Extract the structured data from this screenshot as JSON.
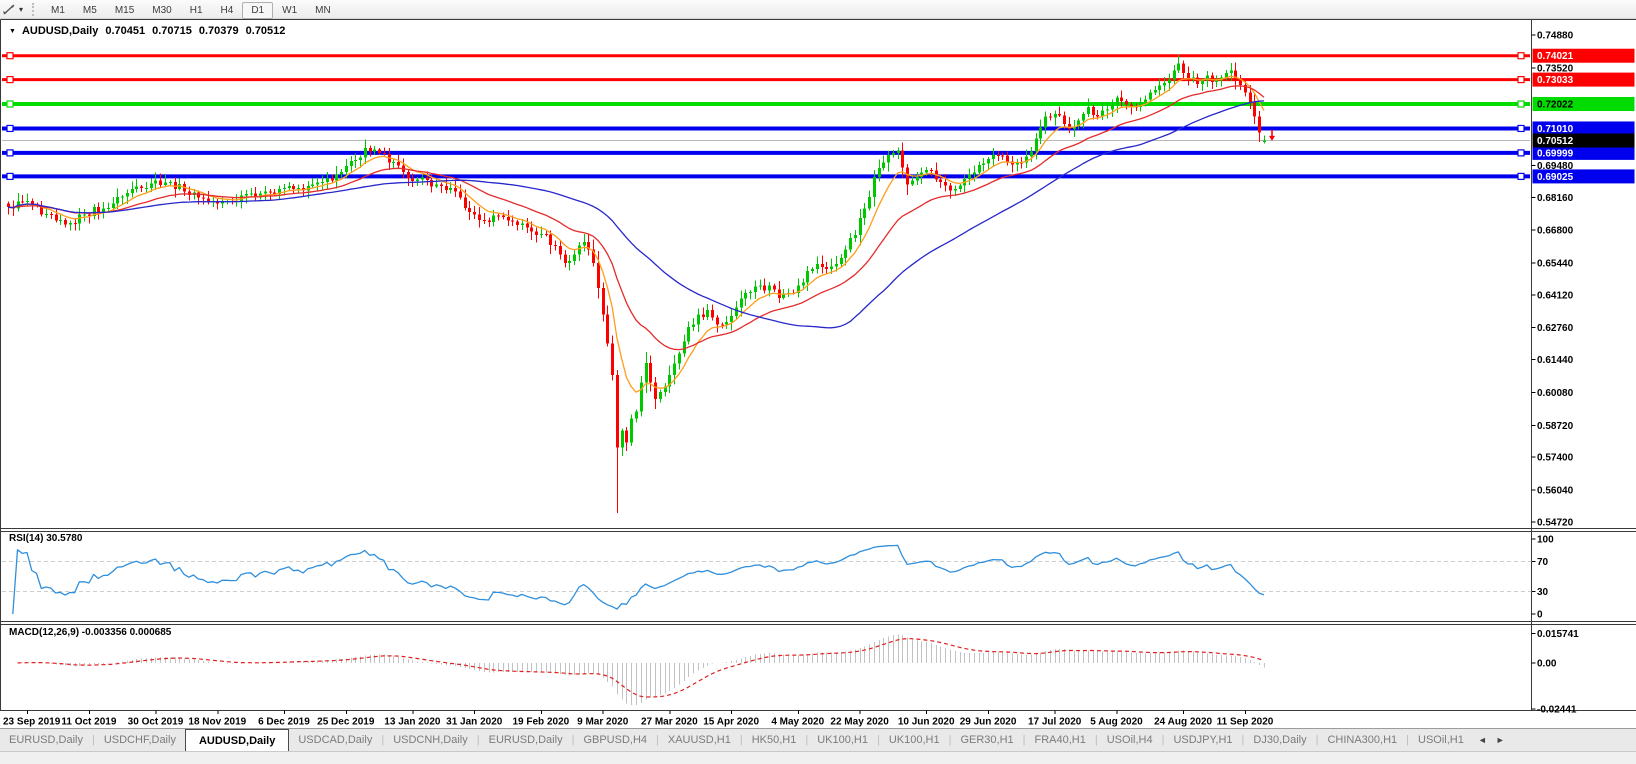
{
  "toolbar": {
    "timeframes": [
      "M1",
      "M5",
      "M15",
      "M30",
      "H1",
      "H4",
      "D1",
      "W1",
      "MN"
    ],
    "active_timeframe": "D1"
  },
  "icons": {
    "dropdown": "▼",
    "caret": "▾",
    "scroll_left": "◄",
    "scroll_right": "►",
    "tab_separator": "|"
  },
  "chart_header": {
    "symbol": "AUDUSD,Daily",
    "open": "0.70451",
    "high": "0.70715",
    "low": "0.70379",
    "close": "0.70512"
  },
  "rsi_panel": {
    "label": "RSI(14) 30.5780"
  },
  "macd_panel": {
    "label": "MACD(12,26,9) -0.003356 0.000685"
  },
  "tab_bar": {
    "tabs": [
      {
        "label": "EURUSD,Daily",
        "active": false
      },
      {
        "label": "USDCHF,Daily",
        "active": false
      },
      {
        "label": "AUDUSD,Daily",
        "active": true
      },
      {
        "label": "USDCAD,Daily",
        "active": false
      },
      {
        "label": "USDCNH,Daily",
        "active": false
      },
      {
        "label": "EURUSD,Daily",
        "active": false
      },
      {
        "label": "GBPUSD,H4",
        "active": false
      },
      {
        "label": "XAUUSD,H1",
        "active": false
      },
      {
        "label": "HK50,H1",
        "active": false
      },
      {
        "label": "UK100,H1",
        "active": false
      },
      {
        "label": "UK100,H1",
        "active": false
      },
      {
        "label": "GER30,H1",
        "active": false
      },
      {
        "label": "FRA40,H1",
        "active": false
      },
      {
        "label": "USOil,H4",
        "active": false
      },
      {
        "label": "USDJPY,H1",
        "active": false
      },
      {
        "label": "DJ30,Daily",
        "active": false
      },
      {
        "label": "CHINA300,H1",
        "active": false
      },
      {
        "label": "USOil,H1",
        "active": false
      }
    ]
  },
  "chart_data": {
    "type": "candlestick",
    "symbol": "AUDUSD",
    "timeframe": "Daily",
    "n_candles": 265,
    "ylim": [
      0.5447,
      0.755
    ],
    "price_axis_ticks": [
      "0.74880",
      "0.73520",
      "0.69480",
      "0.68160",
      "0.66800",
      "0.65440",
      "0.64120",
      "0.62760",
      "0.61440",
      "0.60080",
      "0.58720",
      "0.57400",
      "0.56040",
      "0.54720"
    ],
    "x_axis": [
      {
        "label": "23 Sep 2019",
        "candle_index": 4
      },
      {
        "label": "11 Oct 2019",
        "candle_index": 17
      },
      {
        "label": "30 Oct 2019",
        "candle_index": 31
      },
      {
        "label": "18 Nov 2019",
        "candle_index": 44
      },
      {
        "label": "6 Dec 2019",
        "candle_index": 58
      },
      {
        "label": "25 Dec 2019",
        "candle_index": 71
      },
      {
        "label": "13 Jan 2020",
        "candle_index": 85
      },
      {
        "label": "31 Jan 2020",
        "candle_index": 98
      },
      {
        "label": "19 Feb 2020",
        "candle_index": 112
      },
      {
        "label": "9 Mar 2020",
        "candle_index": 125
      },
      {
        "label": "27 Mar 2020",
        "candle_index": 139
      },
      {
        "label": "15 Apr 2020",
        "candle_index": 152
      },
      {
        "label": "4 May 2020",
        "candle_index": 166
      },
      {
        "label": "22 May 2020",
        "candle_index": 179
      },
      {
        "label": "10 Jun 2020",
        "candle_index": 193
      },
      {
        "label": "29 Jun 2020",
        "candle_index": 206
      },
      {
        "label": "17 Jul 2020",
        "candle_index": 220
      },
      {
        "label": "5 Aug 2020",
        "candle_index": 233
      },
      {
        "label": "24 Aug 2020",
        "candle_index": 247
      },
      {
        "label": "11 Sep 2020",
        "candle_index": 260
      }
    ],
    "close_anchors": [
      [
        0,
        0.6775
      ],
      [
        4,
        0.68
      ],
      [
        7,
        0.6745
      ],
      [
        10,
        0.672
      ],
      [
        13,
        0.671
      ],
      [
        16,
        0.6745
      ],
      [
        20,
        0.677
      ],
      [
        24,
        0.682
      ],
      [
        27,
        0.686
      ],
      [
        31,
        0.6885
      ],
      [
        34,
        0.688
      ],
      [
        37,
        0.684
      ],
      [
        40,
        0.6815
      ],
      [
        44,
        0.679
      ],
      [
        47,
        0.68
      ],
      [
        50,
        0.683
      ],
      [
        54,
        0.684
      ],
      [
        58,
        0.6855
      ],
      [
        62,
        0.6845
      ],
      [
        66,
        0.688
      ],
      [
        70,
        0.692
      ],
      [
        73,
        0.697
      ],
      [
        75,
        0.702
      ],
      [
        78,
        0.7
      ],
      [
        80,
        0.696
      ],
      [
        83,
        0.692
      ],
      [
        86,
        0.689
      ],
      [
        90,
        0.687
      ],
      [
        94,
        0.684
      ],
      [
        97,
        0.6755
      ],
      [
        100,
        0.672
      ],
      [
        103,
        0.674
      ],
      [
        106,
        0.6715
      ],
      [
        109,
        0.669
      ],
      [
        112,
        0.6665
      ],
      [
        115,
        0.6615
      ],
      [
        117,
        0.6545
      ],
      [
        119,
        0.658
      ],
      [
        121,
        0.663
      ],
      [
        123,
        0.6545
      ],
      [
        124,
        0.644
      ],
      [
        125,
        0.633
      ],
      [
        126,
        0.621
      ],
      [
        127,
        0.608
      ],
      [
        128,
        0.578
      ],
      [
        129,
        0.585
      ],
      [
        130,
        0.58
      ],
      [
        131,
        0.59
      ],
      [
        132,
        0.593
      ],
      [
        133,
        0.605
      ],
      [
        134,
        0.613
      ],
      [
        135,
        0.605
      ],
      [
        136,
        0.598
      ],
      [
        137,
        0.601
      ],
      [
        139,
        0.608
      ],
      [
        141,
        0.617
      ],
      [
        143,
        0.628
      ],
      [
        145,
        0.633
      ],
      [
        147,
        0.635
      ],
      [
        149,
        0.629
      ],
      [
        151,
        0.63
      ],
      [
        153,
        0.636
      ],
      [
        155,
        0.642
      ],
      [
        158,
        0.645
      ],
      [
        160,
        0.645
      ],
      [
        162,
        0.64
      ],
      [
        164,
        0.642
      ],
      [
        166,
        0.645
      ],
      [
        168,
        0.651
      ],
      [
        170,
        0.654
      ],
      [
        172,
        0.652
      ],
      [
        174,
        0.654
      ],
      [
        176,
        0.66
      ],
      [
        178,
        0.666
      ],
      [
        180,
        0.677
      ],
      [
        182,
        0.69
      ],
      [
        184,
        0.696
      ],
      [
        186,
        0.7
      ],
      [
        187,
        0.701
      ],
      [
        188,
        0.694
      ],
      [
        189,
        0.687
      ],
      [
        191,
        0.69
      ],
      [
        193,
        0.693
      ],
      [
        195,
        0.689
      ],
      [
        197,
        0.6865
      ],
      [
        199,
        0.685
      ],
      [
        200,
        0.6865
      ],
      [
        202,
        0.691
      ],
      [
        204,
        0.695
      ],
      [
        206,
        0.6975
      ],
      [
        208,
        0.699
      ],
      [
        210,
        0.6965
      ],
      [
        212,
        0.696
      ],
      [
        214,
        0.6985
      ],
      [
        216,
        0.706
      ],
      [
        218,
        0.715
      ],
      [
        220,
        0.716
      ],
      [
        222,
        0.712
      ],
      [
        224,
        0.711
      ],
      [
        226,
        0.716
      ],
      [
        227,
        0.719
      ],
      [
        229,
        0.715
      ],
      [
        231,
        0.718
      ],
      [
        233,
        0.723
      ],
      [
        235,
        0.72
      ],
      [
        237,
        0.719
      ],
      [
        239,
        0.722
      ],
      [
        241,
        0.726
      ],
      [
        243,
        0.729
      ],
      [
        245,
        0.734
      ],
      [
        246,
        0.737
      ],
      [
        247,
        0.733
      ],
      [
        248,
        0.731
      ],
      [
        250,
        0.7285
      ],
      [
        252,
        0.732
      ],
      [
        254,
        0.73
      ],
      [
        256,
        0.733
      ],
      [
        257,
        0.734
      ],
      [
        258,
        0.73
      ],
      [
        259,
        0.728
      ],
      [
        260,
        0.725
      ],
      [
        261,
        0.721
      ],
      [
        262,
        0.715
      ],
      [
        263,
        0.7085
      ],
      [
        264,
        0.70512
      ]
    ],
    "special": {
      "crash_low_index": 128,
      "crash_low": 0.551,
      "spike_high_index": 246,
      "spike_high": 0.7406,
      "last_candle": {
        "open": 0.70451,
        "high": 0.70715,
        "low": 0.70379,
        "close": 0.70512
      }
    },
    "moving_averages": [
      {
        "name": "fast",
        "type": "ema",
        "period": 8,
        "color": "#ff9d1c"
      },
      {
        "name": "mid",
        "type": "ema",
        "period": 24,
        "color": "#e52b2b"
      },
      {
        "name": "slow",
        "type": "sma",
        "period": 50,
        "color": "#2828cc"
      }
    ],
    "hlines": [
      {
        "price": 0.74021,
        "label": "0.74021",
        "color": "#ff0000",
        "label_text_color": "#ffffff",
        "width": 3
      },
      {
        "price": 0.73033,
        "label": "0.73033",
        "color": "#ff0000",
        "label_text_color": "#ffffff",
        "width": 3
      },
      {
        "price": 0.72022,
        "label": "0.72022",
        "color": "#00dc00",
        "label_text_color": "#000000",
        "width": 4
      },
      {
        "price": 0.7101,
        "label": "0.71010",
        "color": "#0000ee",
        "label_text_color": "#ffffff",
        "width": 4
      },
      {
        "price": 0.69999,
        "label": "0.69999",
        "color": "#0000ee",
        "label_text_color": "#ffffff",
        "width": 4
      },
      {
        "price": 0.69025,
        "label": "0.69025",
        "color": "#0000ee",
        "label_text_color": "#ffffff",
        "width": 4
      }
    ],
    "current_price": {
      "price": 0.70512,
      "label": "0.70512",
      "line_color": "#b8b8b8",
      "label_bg": "#000000",
      "label_text_color": "#ffffff"
    },
    "rsi": {
      "period": 14,
      "current_value": "30.5780",
      "color": "#2f8fdd",
      "axis_ticks": [
        {
          "value": 100,
          "label": "100",
          "dashed": false
        },
        {
          "value": 70,
          "label": "70",
          "dashed": true
        },
        {
          "value": 30,
          "label": "30",
          "dashed": true
        },
        {
          "value": 0,
          "label": "0",
          "dashed": false
        }
      ]
    },
    "macd": {
      "fast": 12,
      "slow": 26,
      "signal": 9,
      "main_value": "-0.003356",
      "signal_value": "0.000685",
      "hist_color": "#c2c2c2",
      "signal_color": "#e02020",
      "axis_ticks": [
        {
          "value": 0.015741,
          "label": "0.015741"
        },
        {
          "value": 0,
          "label": "0.00"
        },
        {
          "value": -0.02441,
          "label": "-0.02441"
        }
      ]
    },
    "colors": {
      "up": "#00c800",
      "down": "#ff0000",
      "border": "#000000",
      "grid_dash": "#cdcdcd"
    }
  }
}
